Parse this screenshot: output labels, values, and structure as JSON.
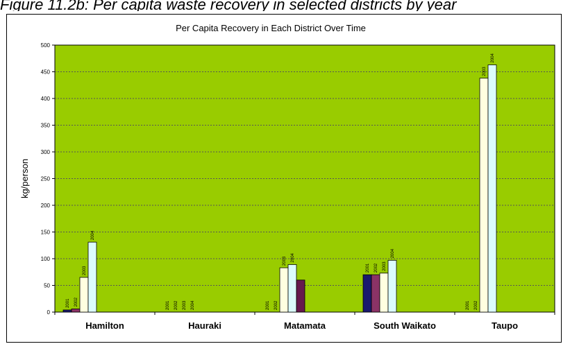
{
  "caption": "Figure 11.2b: Per capita waste recovery in selected districts by year",
  "chart_data": {
    "type": "bar",
    "title": "Per Capita Recovery in Each District Over Time",
    "xlabel": "",
    "ylabel": "kg/person",
    "ylim": [
      0,
      500
    ],
    "yticks": [
      0,
      50,
      100,
      150,
      200,
      250,
      300,
      350,
      400,
      450,
      500
    ],
    "grid": true,
    "legend": "none",
    "categories": [
      "Hamilton",
      "Hauraki",
      "Matamata",
      "South Waikato",
      "Taupo"
    ],
    "bar_slot_labels": [
      "2001",
      "2002",
      "2003",
      "2004",
      ""
    ],
    "slot_colors": [
      "#1a1a6e",
      "#8b3366",
      "#ffffe0",
      "#dcfcfc",
      "#661a4d"
    ],
    "plot_background": "#99cc00",
    "groups": [
      {
        "category": "Hamilton",
        "values": [
          4,
          6,
          65,
          131,
          null
        ],
        "labels": [
          "2001",
          "2002",
          "2003",
          "2004",
          ""
        ]
      },
      {
        "category": "Hauraki",
        "values": [
          0,
          0,
          0,
          0,
          null
        ],
        "labels": [
          "2001",
          "2002",
          "2003",
          "2004",
          ""
        ]
      },
      {
        "category": "Matamata",
        "values": [
          0,
          0,
          83,
          89,
          60
        ],
        "labels": [
          "2001",
          "2002",
          "2003",
          "2004",
          ""
        ]
      },
      {
        "category": "South Waikato",
        "values": [
          70,
          70,
          73,
          97,
          null
        ],
        "labels": [
          "2001",
          "2002",
          "2003",
          "2004",
          ""
        ]
      },
      {
        "category": "Taupo",
        "values": [
          0,
          0,
          438,
          463,
          null
        ],
        "labels": [
          "2001",
          "2002",
          "2003",
          "2004",
          ""
        ]
      }
    ]
  }
}
